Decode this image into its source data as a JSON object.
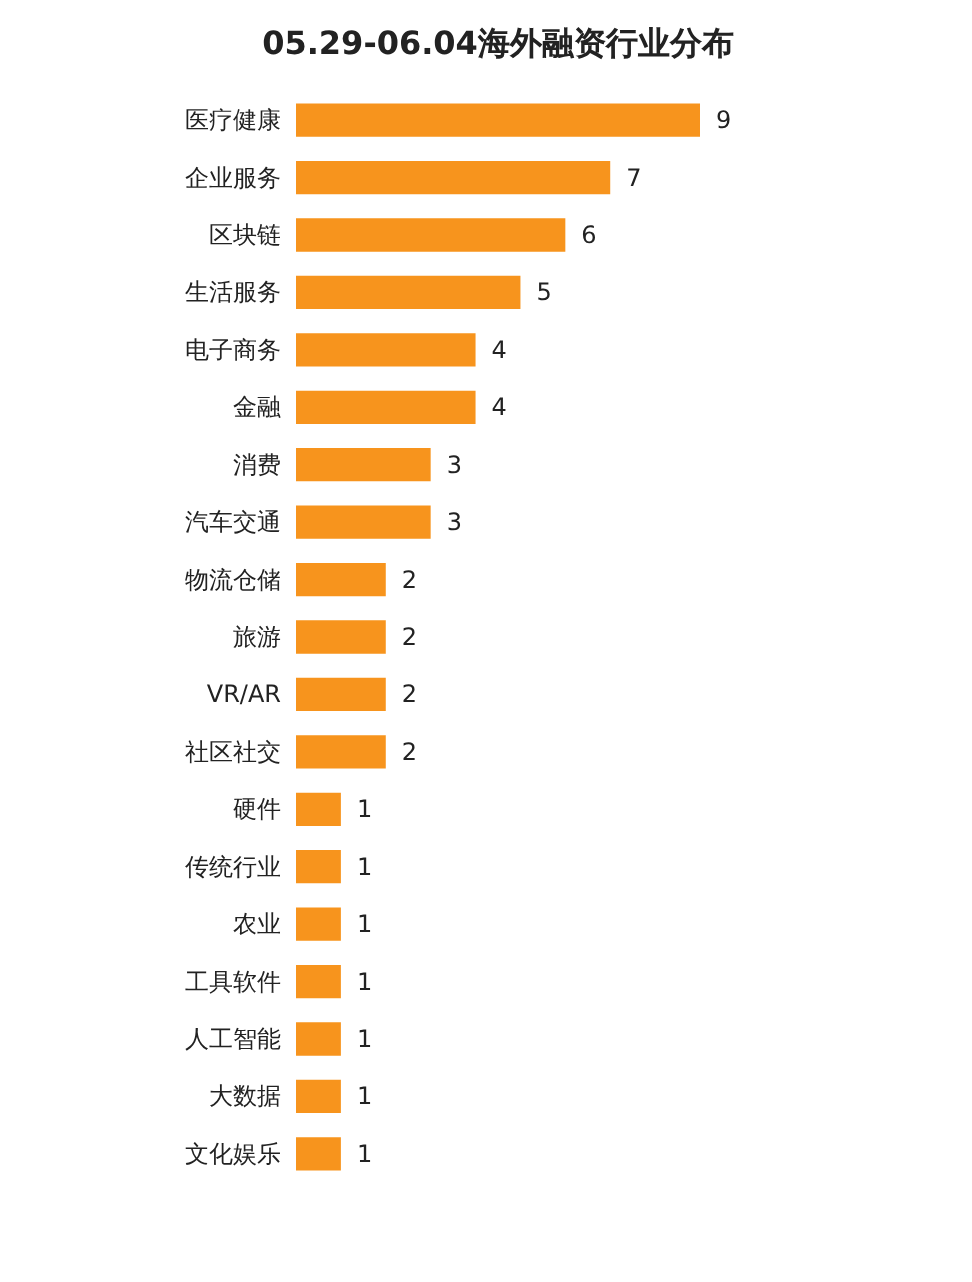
{
  "chart_data": {
    "type": "bar",
    "orientation": "horizontal",
    "title": "05.29-06.04海外融资行业分布",
    "categories": [
      "医疗健康",
      "企业服务",
      "区块链",
      "生活服务",
      "电子商务",
      "金融",
      "消费",
      "汽车交通",
      "物流仓储",
      "旅游",
      "VR/AR",
      "社区社交",
      "硬件",
      "传统行业",
      "农业",
      "工具软件",
      "人工智能",
      "大数据",
      "文化娱乐"
    ],
    "values": [
      9,
      7,
      6,
      5,
      4,
      4,
      3,
      3,
      2,
      2,
      2,
      2,
      1,
      1,
      1,
      1,
      1,
      1,
      1
    ],
    "color": "#f7941d",
    "data_labels": true
  }
}
